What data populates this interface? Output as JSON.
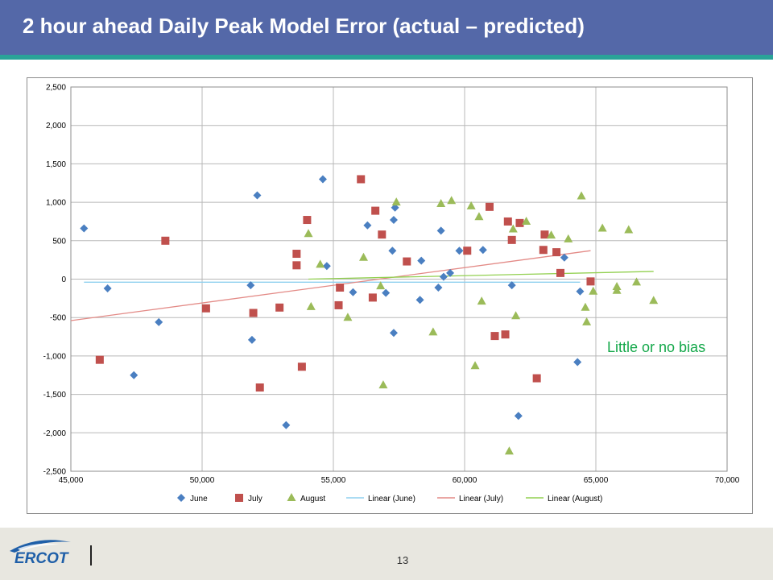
{
  "page": {
    "title": "2 hour ahead Daily Peak Model Error (actual – predicted)",
    "annotation": "Little or no bias",
    "page_number": "13",
    "logo_text": "ERCOT"
  },
  "colors": {
    "header": "#5468a8",
    "accent": "#2aa398",
    "june": "#4a7fc1",
    "july": "#c0504d",
    "august": "#9bbb59",
    "linear_june": "#8fd0ef",
    "linear_july": "#e38a86",
    "linear_august": "#92d050",
    "annotation": "#14a84a"
  },
  "chart_data": {
    "type": "scatter",
    "title": "",
    "xlabel": "",
    "ylabel": "",
    "xlim": [
      45000,
      70000
    ],
    "ylim": [
      -2500,
      2500
    ],
    "x_ticks": [
      45000,
      50000,
      55000,
      60000,
      65000,
      70000
    ],
    "x_tick_labels": [
      "45,000",
      "50,000",
      "55,000",
      "60,000",
      "65,000",
      "70,000"
    ],
    "y_ticks": [
      2500,
      2000,
      1500,
      1000,
      500,
      0,
      -500,
      -1000,
      -1500,
      -2000,
      -2500
    ],
    "y_tick_labels": [
      "2,500",
      "2,000",
      "1,500",
      "1,000",
      "500",
      "0",
      "-500",
      "-1,000",
      "-1,500",
      "-2,000",
      "-2,500"
    ],
    "grid": true,
    "legend": "bottom",
    "series": [
      {
        "name": "June",
        "marker": "diamond",
        "points": [
          [
            45500,
            660
          ],
          [
            46400,
            -120
          ],
          [
            47400,
            -1250
          ],
          [
            48350,
            -560
          ],
          [
            51850,
            -80
          ],
          [
            51900,
            -790
          ],
          [
            52100,
            1090
          ],
          [
            53200,
            -1900
          ],
          [
            54600,
            1300
          ],
          [
            54750,
            170
          ],
          [
            55750,
            -170
          ],
          [
            56300,
            700
          ],
          [
            57000,
            -180
          ],
          [
            57250,
            370
          ],
          [
            57300,
            770
          ],
          [
            57300,
            -700
          ],
          [
            57350,
            930
          ],
          [
            58300,
            -270
          ],
          [
            58350,
            240
          ],
          [
            59000,
            -110
          ],
          [
            59100,
            630
          ],
          [
            59200,
            30
          ],
          [
            59450,
            80
          ],
          [
            59800,
            370
          ],
          [
            60700,
            380
          ],
          [
            61800,
            -80
          ],
          [
            62050,
            -1780
          ],
          [
            63800,
            280
          ],
          [
            64300,
            -1080
          ],
          [
            64400,
            -160
          ]
        ]
      },
      {
        "name": "July",
        "marker": "square",
        "points": [
          [
            46100,
            -1050
          ],
          [
            48600,
            500
          ],
          [
            50150,
            -380
          ],
          [
            51950,
            -440
          ],
          [
            52200,
            -1410
          ],
          [
            52950,
            -370
          ],
          [
            53600,
            330
          ],
          [
            53600,
            180
          ],
          [
            53800,
            -1140
          ],
          [
            54000,
            770
          ],
          [
            55200,
            -340
          ],
          [
            55250,
            -110
          ],
          [
            56050,
            1300
          ],
          [
            56500,
            -240
          ],
          [
            56600,
            890
          ],
          [
            56850,
            580
          ],
          [
            57800,
            230
          ],
          [
            60100,
            370
          ],
          [
            60950,
            940
          ],
          [
            61150,
            -740
          ],
          [
            61550,
            -720
          ],
          [
            61650,
            750
          ],
          [
            61800,
            510
          ],
          [
            62100,
            730
          ],
          [
            62750,
            -1290
          ],
          [
            63000,
            380
          ],
          [
            63050,
            580
          ],
          [
            63500,
            350
          ],
          [
            63650,
            80
          ],
          [
            64800,
            -30
          ]
        ]
      },
      {
        "name": "August",
        "marker": "triangle",
        "points": [
          [
            54050,
            590
          ],
          [
            54150,
            -360
          ],
          [
            54500,
            190
          ],
          [
            55550,
            -500
          ],
          [
            56150,
            280
          ],
          [
            56800,
            -90
          ],
          [
            56900,
            -1380
          ],
          [
            57400,
            1000
          ],
          [
            58800,
            -690
          ],
          [
            59100,
            980
          ],
          [
            59500,
            1020
          ],
          [
            60250,
            950
          ],
          [
            60400,
            -1130
          ],
          [
            60550,
            810
          ],
          [
            60650,
            -290
          ],
          [
            61700,
            -2240
          ],
          [
            61850,
            650
          ],
          [
            61950,
            -480
          ],
          [
            62350,
            750
          ],
          [
            63300,
            570
          ],
          [
            63950,
            520
          ],
          [
            64450,
            1080
          ],
          [
            64600,
            -370
          ],
          [
            64650,
            -560
          ],
          [
            64900,
            -160
          ],
          [
            65250,
            660
          ],
          [
            65800,
            -100
          ],
          [
            65800,
            -150
          ],
          [
            66250,
            640
          ],
          [
            66550,
            -40
          ],
          [
            67200,
            -280
          ]
        ]
      }
    ],
    "trendlines": [
      {
        "name": "Linear (June)",
        "from": [
          45500,
          -40
        ],
        "to": [
          64400,
          -40
        ]
      },
      {
        "name": "Linear (July)",
        "from": [
          45000,
          -540
        ],
        "to": [
          64800,
          370
        ]
      },
      {
        "name": "Linear (August)",
        "from": [
          54050,
          0
        ],
        "to": [
          67200,
          100
        ]
      }
    ]
  }
}
